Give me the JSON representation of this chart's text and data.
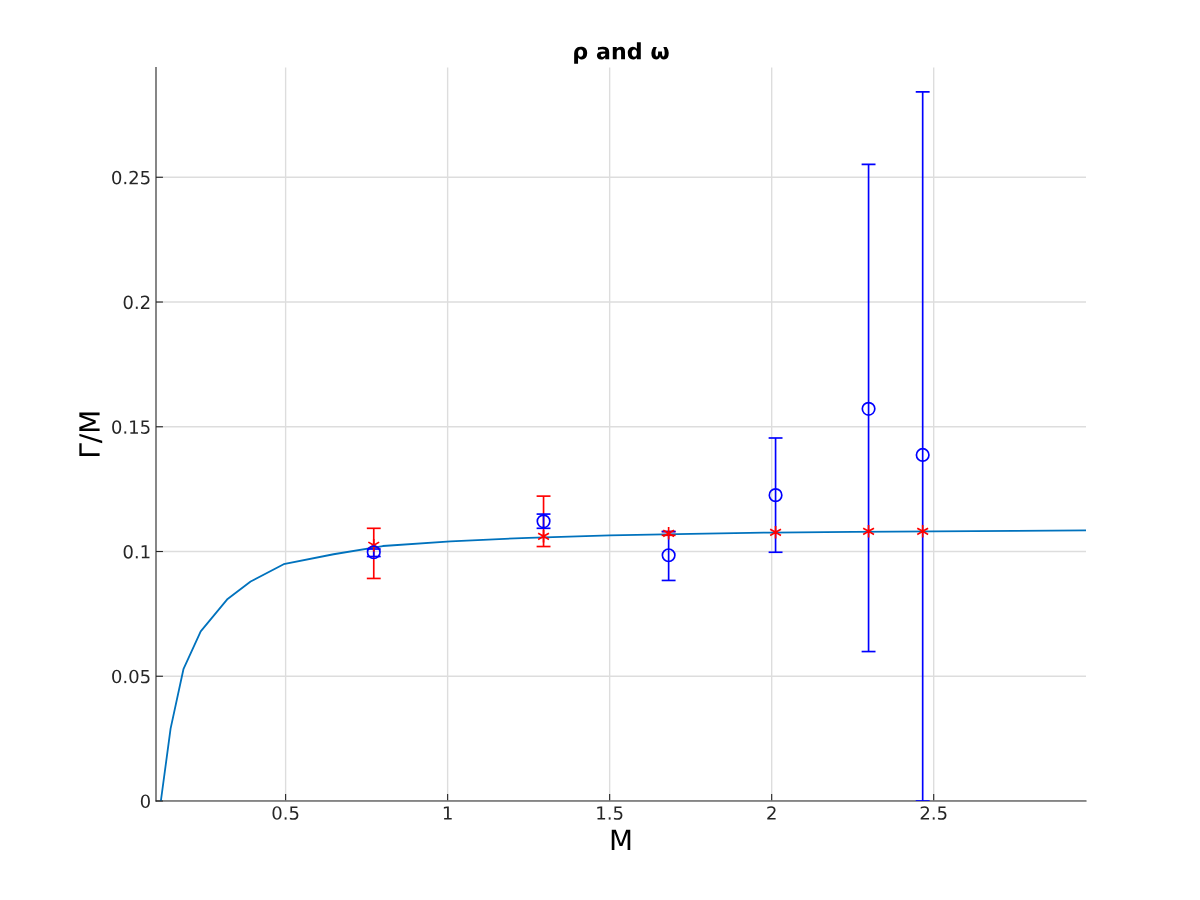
{
  "chart_data": {
    "type": "scatter",
    "title": "ρ and ω",
    "xlabel": "M",
    "ylabel": "Γ/M",
    "xlim": [
      0.1,
      2.97
    ],
    "ylim": [
      0,
      0.294
    ],
    "xticks": [
      0.5,
      1,
      1.5,
      2,
      2.5
    ],
    "yticks": [
      0,
      0.05,
      0.1,
      0.15,
      0.2,
      0.25
    ],
    "grid": true,
    "series": [
      {
        "type": "line",
        "color": "#0072bd",
        "marker": "none",
        "line_style": "solid",
        "x": [
          0.115,
          0.145,
          0.185,
          0.238,
          0.321,
          0.392,
          0.494,
          0.648,
          0.8,
          1.009,
          1.25,
          1.5,
          1.75,
          2.0,
          2.25,
          2.5,
          2.75,
          2.97
        ],
        "values": [
          0,
          0.029,
          0.053,
          0.068,
          0.081,
          0.088,
          0.0949,
          0.0989,
          0.1022,
          0.1041,
          0.1055,
          0.1065,
          0.1071,
          0.1076,
          0.1079,
          0.1081,
          0.1083,
          0.1085
        ]
      },
      {
        "color": "#ff0000",
        "marker": "cross",
        "x": [
          0.772,
          1.296,
          1.682,
          2.012,
          2.299,
          2.466
        ],
        "values": [
          0.1025,
          0.1061,
          0.1073,
          0.1077,
          0.1081,
          0.1081
        ],
        "errors": [
          [
            0.0892,
            0.1093
          ],
          [
            0.102,
            0.1222
          ],
          [
            0.1065,
            0.108
          ],
          null,
          null,
          null
        ]
      },
      {
        "color": "#0000ff",
        "marker": "circle",
        "x": [
          0.772,
          1.296,
          1.682,
          2.012,
          2.299,
          2.466
        ],
        "values": [
          0.0997,
          0.1121,
          0.0985,
          0.1226,
          0.1572,
          0.1387
        ],
        "errors": [
          [
            0.098,
            0.101
          ],
          [
            0.1093,
            0.115
          ],
          [
            0.0884,
            0.108
          ],
          [
            0.0997,
            0.1455
          ],
          [
            0.0599,
            0.2552
          ],
          [
            0,
            0.2842
          ]
        ]
      }
    ]
  }
}
